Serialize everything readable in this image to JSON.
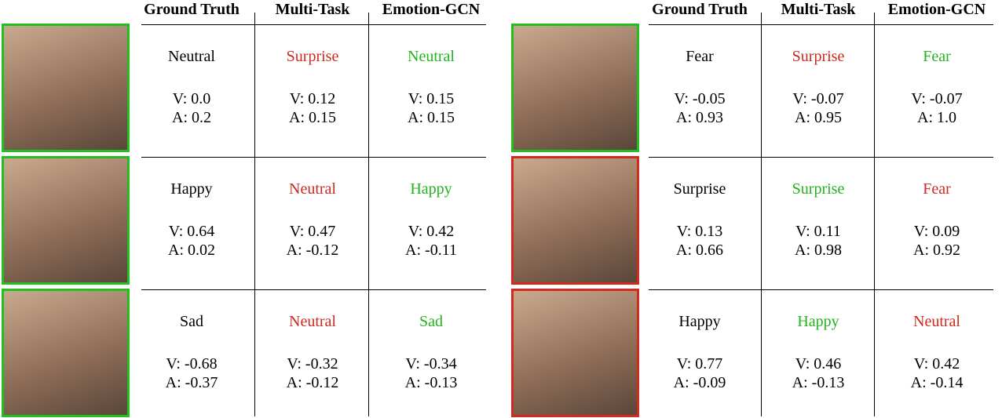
{
  "panels": [
    {
      "headers": [
        "Ground Truth",
        "Multi-Task",
        "Emotion-GCN"
      ],
      "rows": [
        {
          "border": "#22c01e",
          "cells": [
            {
              "label": "Neutral",
              "color": "#000000",
              "v": "V: 0.0",
              "a": "A: 0.2"
            },
            {
              "label": "Surprise",
              "color": "#cc2a1e",
              "v": "V: 0.12",
              "a": "A: 0.15"
            },
            {
              "label": "Neutral",
              "color": "#22b41e",
              "v": "V: 0.15",
              "a": "A: 0.15"
            }
          ]
        },
        {
          "border": "#22c01e",
          "cells": [
            {
              "label": "Happy",
              "color": "#000000",
              "v": "V: 0.64",
              "a": "A: 0.02"
            },
            {
              "label": "Neutral",
              "color": "#cc2a1e",
              "v": "V: 0.47",
              "a": "A: -0.12"
            },
            {
              "label": "Happy",
              "color": "#22b41e",
              "v": "V: 0.42",
              "a": "A: -0.11"
            }
          ]
        },
        {
          "border": "#22c01e",
          "cells": [
            {
              "label": "Sad",
              "color": "#000000",
              "v": "V: -0.68",
              "a": "A: -0.37"
            },
            {
              "label": "Neutral",
              "color": "#cc2a1e",
              "v": "V: -0.32",
              "a": "A: -0.12"
            },
            {
              "label": "Sad",
              "color": "#22b41e",
              "v": "V: -0.34",
              "a": "A: -0.13"
            }
          ]
        }
      ]
    },
    {
      "headers": [
        "Ground Truth",
        "Multi-Task",
        "Emotion-GCN"
      ],
      "rows": [
        {
          "border": "#22c01e",
          "cells": [
            {
              "label": "Fear",
              "color": "#000000",
              "v": "V: -0.05",
              "a": "A: 0.93"
            },
            {
              "label": "Surprise",
              "color": "#cc2a1e",
              "v": "V: -0.07",
              "a": "A: 0.95"
            },
            {
              "label": "Fear",
              "color": "#22b41e",
              "v": "V: -0.07",
              "a": "A: 1.0"
            }
          ]
        },
        {
          "border": "#d42a1e",
          "cells": [
            {
              "label": "Surprise",
              "color": "#000000",
              "v": "V: 0.13",
              "a": "A: 0.66"
            },
            {
              "label": "Surprise",
              "color": "#22b41e",
              "v": "V: 0.11",
              "a": "A: 0.98"
            },
            {
              "label": "Fear",
              "color": "#cc2a1e",
              "v": "V: 0.09",
              "a": "A: 0.92"
            }
          ]
        },
        {
          "border": "#d42a1e",
          "cells": [
            {
              "label": "Happy",
              "color": "#000000",
              "v": "V: 0.77",
              "a": "A: -0.09"
            },
            {
              "label": "Happy",
              "color": "#22b41e",
              "v": "V: 0.46",
              "a": "A: -0.13"
            },
            {
              "label": "Neutral",
              "color": "#cc2a1e",
              "v": "V: 0.42",
              "a": "A: -0.14"
            }
          ]
        }
      ]
    }
  ]
}
